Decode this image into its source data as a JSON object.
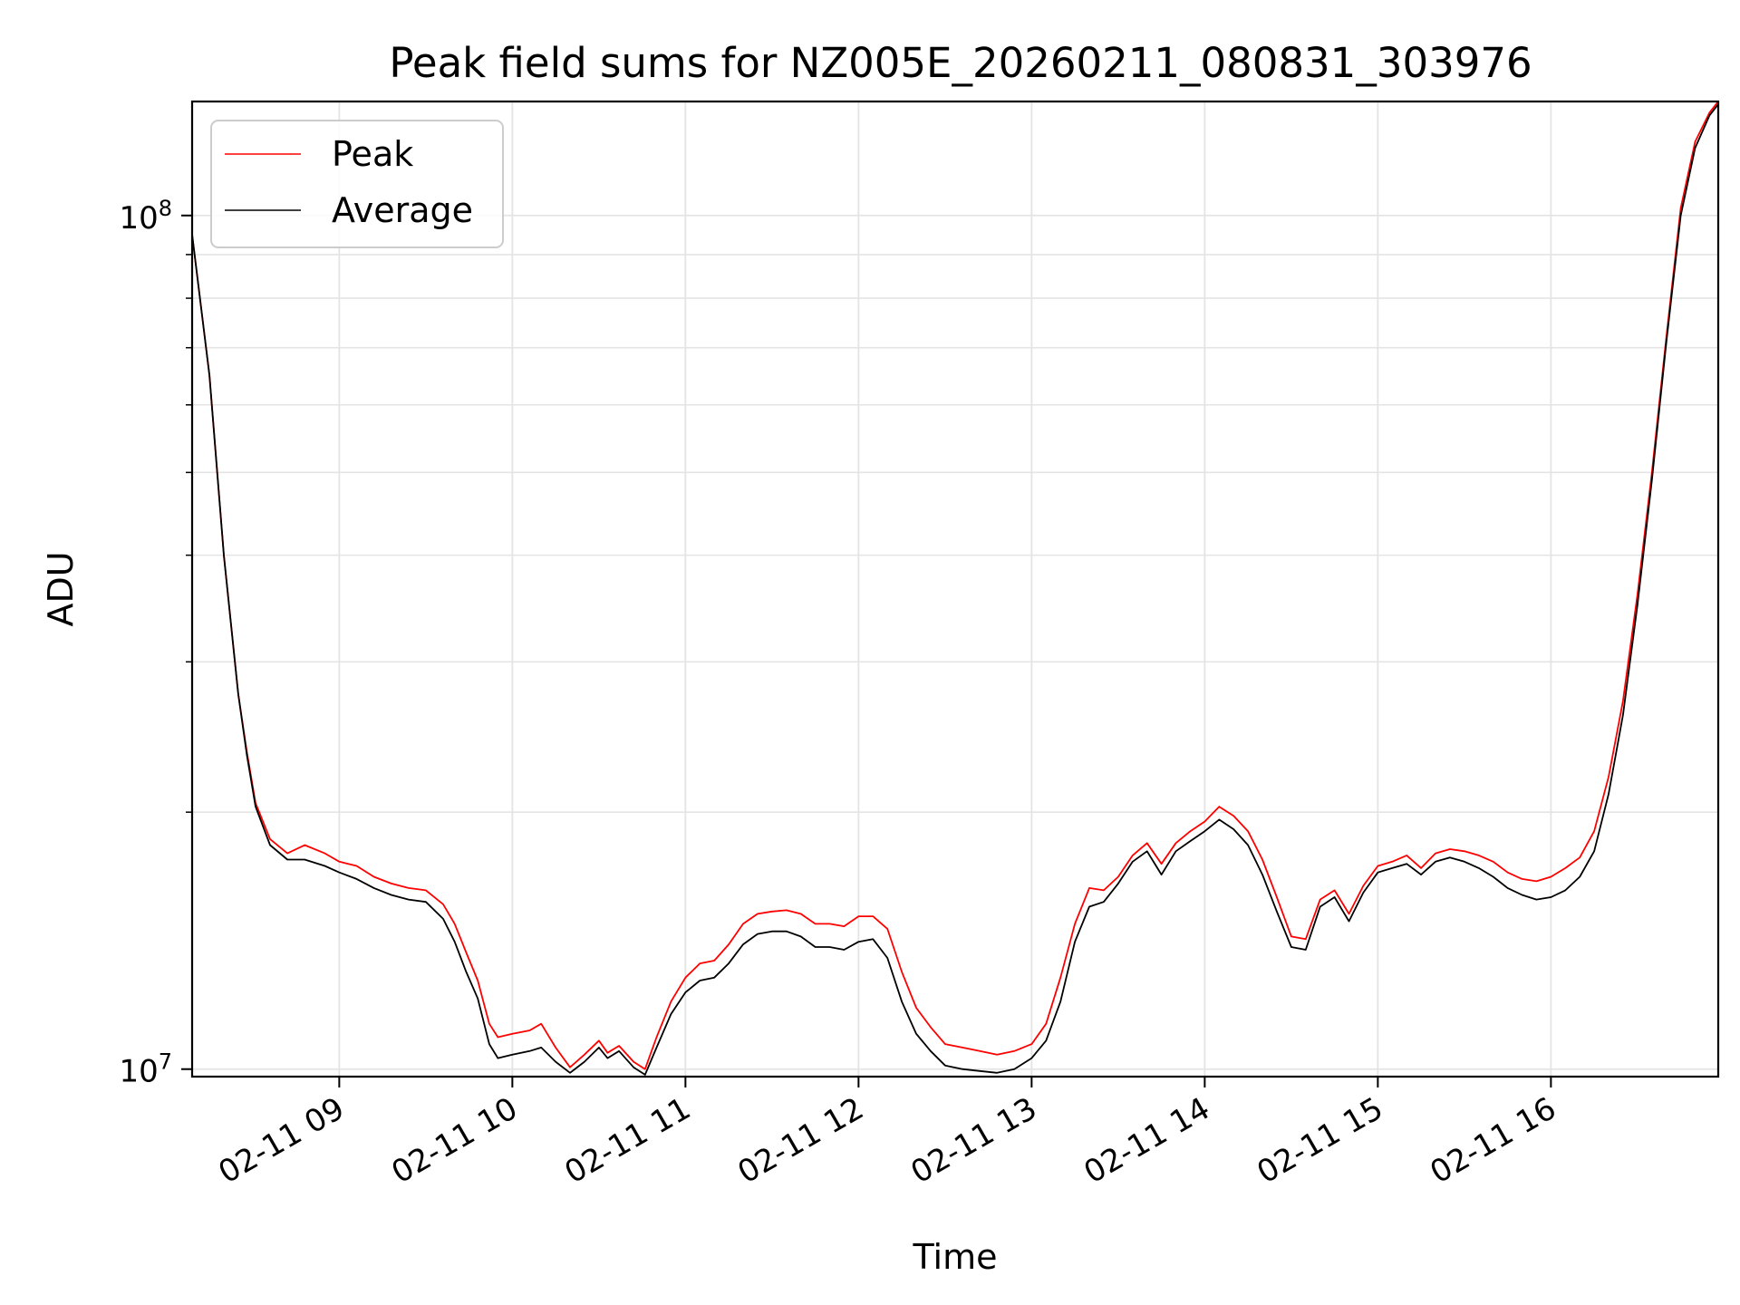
{
  "chart_data": {
    "type": "line",
    "title": "Peak field sums for NZ005E_20260211_080831_303976",
    "xlabel": "Time",
    "ylabel": "ADU",
    "y_scale": "log",
    "ylim": [
      9800000,
      136000000
    ],
    "xlim": [
      "2026-02-11 08:09",
      "2026-02-11 16:58"
    ],
    "x_ticks": [
      {
        "value": "2026-02-11 09:00",
        "label": "02-11 09"
      },
      {
        "value": "2026-02-11 10:00",
        "label": "02-11 10"
      },
      {
        "value": "2026-02-11 11:00",
        "label": "02-11 11"
      },
      {
        "value": "2026-02-11 12:00",
        "label": "02-11 12"
      },
      {
        "value": "2026-02-11 13:00",
        "label": "02-11 13"
      },
      {
        "value": "2026-02-11 14:00",
        "label": "02-11 14"
      },
      {
        "value": "2026-02-11 15:00",
        "label": "02-11 15"
      },
      {
        "value": "2026-02-11 16:00",
        "label": "02-11 16"
      }
    ],
    "y_ticks": [
      {
        "value": 10000000,
        "base": "10",
        "exp": "7"
      },
      {
        "value": 100000000,
        "base": "10",
        "exp": "8"
      }
    ],
    "y_minor_ticks": [
      20000000,
      30000000,
      40000000,
      50000000,
      60000000,
      70000000,
      80000000,
      90000000
    ],
    "grid": true,
    "legend": "upper left",
    "series": [
      {
        "name": "Peak",
        "color": "#ff0000",
        "points": [
          [
            "2026-02-11 08:09",
            95000000
          ],
          [
            "2026-02-11 08:15",
            65000000
          ],
          [
            "2026-02-11 08:20",
            40000000
          ],
          [
            "2026-02-11 08:25",
            27500000
          ],
          [
            "2026-02-11 08:28",
            23500000
          ],
          [
            "2026-02-11 08:31",
            20500000
          ],
          [
            "2026-02-11 08:36",
            18600000
          ],
          [
            "2026-02-11 08:42",
            17900000
          ],
          [
            "2026-02-11 08:48",
            18300000
          ],
          [
            "2026-02-11 08:55",
            17900000
          ],
          [
            "2026-02-11 09:00",
            17500000
          ],
          [
            "2026-02-11 09:06",
            17300000
          ],
          [
            "2026-02-11 09:12",
            16800000
          ],
          [
            "2026-02-11 09:18",
            16500000
          ],
          [
            "2026-02-11 09:24",
            16300000
          ],
          [
            "2026-02-11 09:30",
            16200000
          ],
          [
            "2026-02-11 09:36",
            15600000
          ],
          [
            "2026-02-11 09:40",
            14800000
          ],
          [
            "2026-02-11 09:44",
            13700000
          ],
          [
            "2026-02-11 09:48",
            12700000
          ],
          [
            "2026-02-11 09:52",
            11300000
          ],
          [
            "2026-02-11 09:55",
            10900000
          ],
          [
            "2026-02-11 10:00",
            11000000
          ],
          [
            "2026-02-11 10:06",
            11100000
          ],
          [
            "2026-02-11 10:10",
            11300000
          ],
          [
            "2026-02-11 10:15",
            10600000
          ],
          [
            "2026-02-11 10:20",
            10050000
          ],
          [
            "2026-02-11 10:25",
            10400000
          ],
          [
            "2026-02-11 10:30",
            10800000
          ],
          [
            "2026-02-11 10:33",
            10450000
          ],
          [
            "2026-02-11 10:37",
            10650000
          ],
          [
            "2026-02-11 10:42",
            10200000
          ],
          [
            "2026-02-11 10:46",
            10000000
          ],
          [
            "2026-02-11 10:50",
            10900000
          ],
          [
            "2026-02-11 10:55",
            12000000
          ],
          [
            "2026-02-11 11:00",
            12800000
          ],
          [
            "2026-02-11 11:05",
            13300000
          ],
          [
            "2026-02-11 11:10",
            13400000
          ],
          [
            "2026-02-11 11:15",
            14000000
          ],
          [
            "2026-02-11 11:20",
            14800000
          ],
          [
            "2026-02-11 11:25",
            15200000
          ],
          [
            "2026-02-11 11:30",
            15300000
          ],
          [
            "2026-02-11 11:35",
            15350000
          ],
          [
            "2026-02-11 11:40",
            15200000
          ],
          [
            "2026-02-11 11:45",
            14800000
          ],
          [
            "2026-02-11 11:50",
            14800000
          ],
          [
            "2026-02-11 11:55",
            14700000
          ],
          [
            "2026-02-11 12:00",
            15100000
          ],
          [
            "2026-02-11 12:05",
            15100000
          ],
          [
            "2026-02-11 12:10",
            14600000
          ],
          [
            "2026-02-11 12:15",
            13000000
          ],
          [
            "2026-02-11 12:20",
            11800000
          ],
          [
            "2026-02-11 12:25",
            11200000
          ],
          [
            "2026-02-11 12:30",
            10700000
          ],
          [
            "2026-02-11 12:36",
            10600000
          ],
          [
            "2026-02-11 12:42",
            10500000
          ],
          [
            "2026-02-11 12:48",
            10400000
          ],
          [
            "2026-02-11 12:54",
            10500000
          ],
          [
            "2026-02-11 13:00",
            10700000
          ],
          [
            "2026-02-11 13:05",
            11300000
          ],
          [
            "2026-02-11 13:10",
            12800000
          ],
          [
            "2026-02-11 13:15",
            14800000
          ],
          [
            "2026-02-11 13:20",
            16300000
          ],
          [
            "2026-02-11 13:25",
            16200000
          ],
          [
            "2026-02-11 13:30",
            16800000
          ],
          [
            "2026-02-11 13:35",
            17800000
          ],
          [
            "2026-02-11 13:40",
            18400000
          ],
          [
            "2026-02-11 13:45",
            17400000
          ],
          [
            "2026-02-11 13:50",
            18400000
          ],
          [
            "2026-02-11 13:55",
            19000000
          ],
          [
            "2026-02-11 14:00",
            19500000
          ],
          [
            "2026-02-11 14:05",
            20300000
          ],
          [
            "2026-02-11 14:10",
            19800000
          ],
          [
            "2026-02-11 14:15",
            19000000
          ],
          [
            "2026-02-11 14:20",
            17600000
          ],
          [
            "2026-02-11 14:25",
            15900000
          ],
          [
            "2026-02-11 14:30",
            14300000
          ],
          [
            "2026-02-11 14:35",
            14200000
          ],
          [
            "2026-02-11 14:40",
            15800000
          ],
          [
            "2026-02-11 14:45",
            16200000
          ],
          [
            "2026-02-11 14:50",
            15200000
          ],
          [
            "2026-02-11 14:55",
            16400000
          ],
          [
            "2026-02-11 15:00",
            17300000
          ],
          [
            "2026-02-11 15:05",
            17500000
          ],
          [
            "2026-02-11 15:10",
            17800000
          ],
          [
            "2026-02-11 15:15",
            17200000
          ],
          [
            "2026-02-11 15:20",
            17900000
          ],
          [
            "2026-02-11 15:25",
            18100000
          ],
          [
            "2026-02-11 15:30",
            18000000
          ],
          [
            "2026-02-11 15:35",
            17800000
          ],
          [
            "2026-02-11 15:40",
            17500000
          ],
          [
            "2026-02-11 15:45",
            17000000
          ],
          [
            "2026-02-11 15:50",
            16700000
          ],
          [
            "2026-02-11 15:55",
            16600000
          ],
          [
            "2026-02-11 16:00",
            16800000
          ],
          [
            "2026-02-11 16:05",
            17200000
          ],
          [
            "2026-02-11 16:10",
            17700000
          ],
          [
            "2026-02-11 16:15",
            19000000
          ],
          [
            "2026-02-11 16:20",
            22000000
          ],
          [
            "2026-02-11 16:25",
            27000000
          ],
          [
            "2026-02-11 16:30",
            36000000
          ],
          [
            "2026-02-11 16:35",
            50000000
          ],
          [
            "2026-02-11 16:40",
            72000000
          ],
          [
            "2026-02-11 16:45",
            102000000
          ],
          [
            "2026-02-11 16:50",
            122000000
          ],
          [
            "2026-02-11 16:55",
            132000000
          ],
          [
            "2026-02-11 16:58",
            136000000
          ]
        ]
      },
      {
        "name": "Average",
        "color": "#000000",
        "points": [
          [
            "2026-02-11 08:09",
            95000000
          ],
          [
            "2026-02-11 08:15",
            65000000
          ],
          [
            "2026-02-11 08:20",
            40000000
          ],
          [
            "2026-02-11 08:25",
            27500000
          ],
          [
            "2026-02-11 08:28",
            23300000
          ],
          [
            "2026-02-11 08:31",
            20300000
          ],
          [
            "2026-02-11 08:36",
            18300000
          ],
          [
            "2026-02-11 08:42",
            17600000
          ],
          [
            "2026-02-11 08:48",
            17600000
          ],
          [
            "2026-02-11 08:55",
            17300000
          ],
          [
            "2026-02-11 09:00",
            17000000
          ],
          [
            "2026-02-11 09:06",
            16700000
          ],
          [
            "2026-02-11 09:12",
            16300000
          ],
          [
            "2026-02-11 09:18",
            16000000
          ],
          [
            "2026-02-11 09:24",
            15800000
          ],
          [
            "2026-02-11 09:30",
            15700000
          ],
          [
            "2026-02-11 09:36",
            15000000
          ],
          [
            "2026-02-11 09:40",
            14100000
          ],
          [
            "2026-02-11 09:44",
            13000000
          ],
          [
            "2026-02-11 09:48",
            12100000
          ],
          [
            "2026-02-11 09:52",
            10700000
          ],
          [
            "2026-02-11 09:55",
            10300000
          ],
          [
            "2026-02-11 10:00",
            10400000
          ],
          [
            "2026-02-11 10:06",
            10500000
          ],
          [
            "2026-02-11 10:10",
            10600000
          ],
          [
            "2026-02-11 10:15",
            10200000
          ],
          [
            "2026-02-11 10:20",
            9900000
          ],
          [
            "2026-02-11 10:25",
            10200000
          ],
          [
            "2026-02-11 10:30",
            10600000
          ],
          [
            "2026-02-11 10:33",
            10300000
          ],
          [
            "2026-02-11 10:37",
            10500000
          ],
          [
            "2026-02-11 10:42",
            10050000
          ],
          [
            "2026-02-11 10:46",
            9850000
          ],
          [
            "2026-02-11 10:50",
            10600000
          ],
          [
            "2026-02-11 10:55",
            11600000
          ],
          [
            "2026-02-11 11:00",
            12300000
          ],
          [
            "2026-02-11 11:05",
            12700000
          ],
          [
            "2026-02-11 11:10",
            12800000
          ],
          [
            "2026-02-11 11:15",
            13300000
          ],
          [
            "2026-02-11 11:20",
            14000000
          ],
          [
            "2026-02-11 11:25",
            14400000
          ],
          [
            "2026-02-11 11:30",
            14500000
          ],
          [
            "2026-02-11 11:35",
            14500000
          ],
          [
            "2026-02-11 11:40",
            14300000
          ],
          [
            "2026-02-11 11:45",
            13900000
          ],
          [
            "2026-02-11 11:50",
            13900000
          ],
          [
            "2026-02-11 11:55",
            13800000
          ],
          [
            "2026-02-11 12:00",
            14100000
          ],
          [
            "2026-02-11 12:05",
            14200000
          ],
          [
            "2026-02-11 12:10",
            13500000
          ],
          [
            "2026-02-11 12:15",
            12000000
          ],
          [
            "2026-02-11 12:20",
            11000000
          ],
          [
            "2026-02-11 12:25",
            10500000
          ],
          [
            "2026-02-11 12:30",
            10100000
          ],
          [
            "2026-02-11 12:36",
            10000000
          ],
          [
            "2026-02-11 12:42",
            9950000
          ],
          [
            "2026-02-11 12:48",
            9900000
          ],
          [
            "2026-02-11 12:54",
            10000000
          ],
          [
            "2026-02-11 13:00",
            10300000
          ],
          [
            "2026-02-11 13:05",
            10800000
          ],
          [
            "2026-02-11 13:10",
            12000000
          ],
          [
            "2026-02-11 13:15",
            14100000
          ],
          [
            "2026-02-11 13:20",
            15500000
          ],
          [
            "2026-02-11 13:25",
            15700000
          ],
          [
            "2026-02-11 13:30",
            16500000
          ],
          [
            "2026-02-11 13:35",
            17500000
          ],
          [
            "2026-02-11 13:40",
            18000000
          ],
          [
            "2026-02-11 13:45",
            16900000
          ],
          [
            "2026-02-11 13:50",
            18000000
          ],
          [
            "2026-02-11 13:55",
            18500000
          ],
          [
            "2026-02-11 14:00",
            19000000
          ],
          [
            "2026-02-11 14:05",
            19600000
          ],
          [
            "2026-02-11 14:10",
            19100000
          ],
          [
            "2026-02-11 14:15",
            18300000
          ],
          [
            "2026-02-11 14:20",
            16900000
          ],
          [
            "2026-02-11 14:25",
            15300000
          ],
          [
            "2026-02-11 14:30",
            13900000
          ],
          [
            "2026-02-11 14:35",
            13800000
          ],
          [
            "2026-02-11 14:40",
            15500000
          ],
          [
            "2026-02-11 14:45",
            15900000
          ],
          [
            "2026-02-11 14:50",
            14900000
          ],
          [
            "2026-02-11 14:55",
            16100000
          ],
          [
            "2026-02-11 15:00",
            17000000
          ],
          [
            "2026-02-11 15:05",
            17200000
          ],
          [
            "2026-02-11 15:10",
            17400000
          ],
          [
            "2026-02-11 15:15",
            16900000
          ],
          [
            "2026-02-11 15:20",
            17500000
          ],
          [
            "2026-02-11 15:25",
            17700000
          ],
          [
            "2026-02-11 15:30",
            17500000
          ],
          [
            "2026-02-11 15:35",
            17200000
          ],
          [
            "2026-02-11 15:40",
            16800000
          ],
          [
            "2026-02-11 15:45",
            16300000
          ],
          [
            "2026-02-11 15:50",
            16000000
          ],
          [
            "2026-02-11 15:55",
            15800000
          ],
          [
            "2026-02-11 16:00",
            15900000
          ],
          [
            "2026-02-11 16:05",
            16200000
          ],
          [
            "2026-02-11 16:10",
            16800000
          ],
          [
            "2026-02-11 16:15",
            18000000
          ],
          [
            "2026-02-11 16:20",
            21000000
          ],
          [
            "2026-02-11 16:25",
            26000000
          ],
          [
            "2026-02-11 16:30",
            35000000
          ],
          [
            "2026-02-11 16:35",
            49000000
          ],
          [
            "2026-02-11 16:40",
            71000000
          ],
          [
            "2026-02-11 16:45",
            100000000
          ],
          [
            "2026-02-11 16:50",
            120000000
          ],
          [
            "2026-02-11 16:55",
            131000000
          ],
          [
            "2026-02-11 16:58",
            135000000
          ]
        ]
      }
    ]
  }
}
